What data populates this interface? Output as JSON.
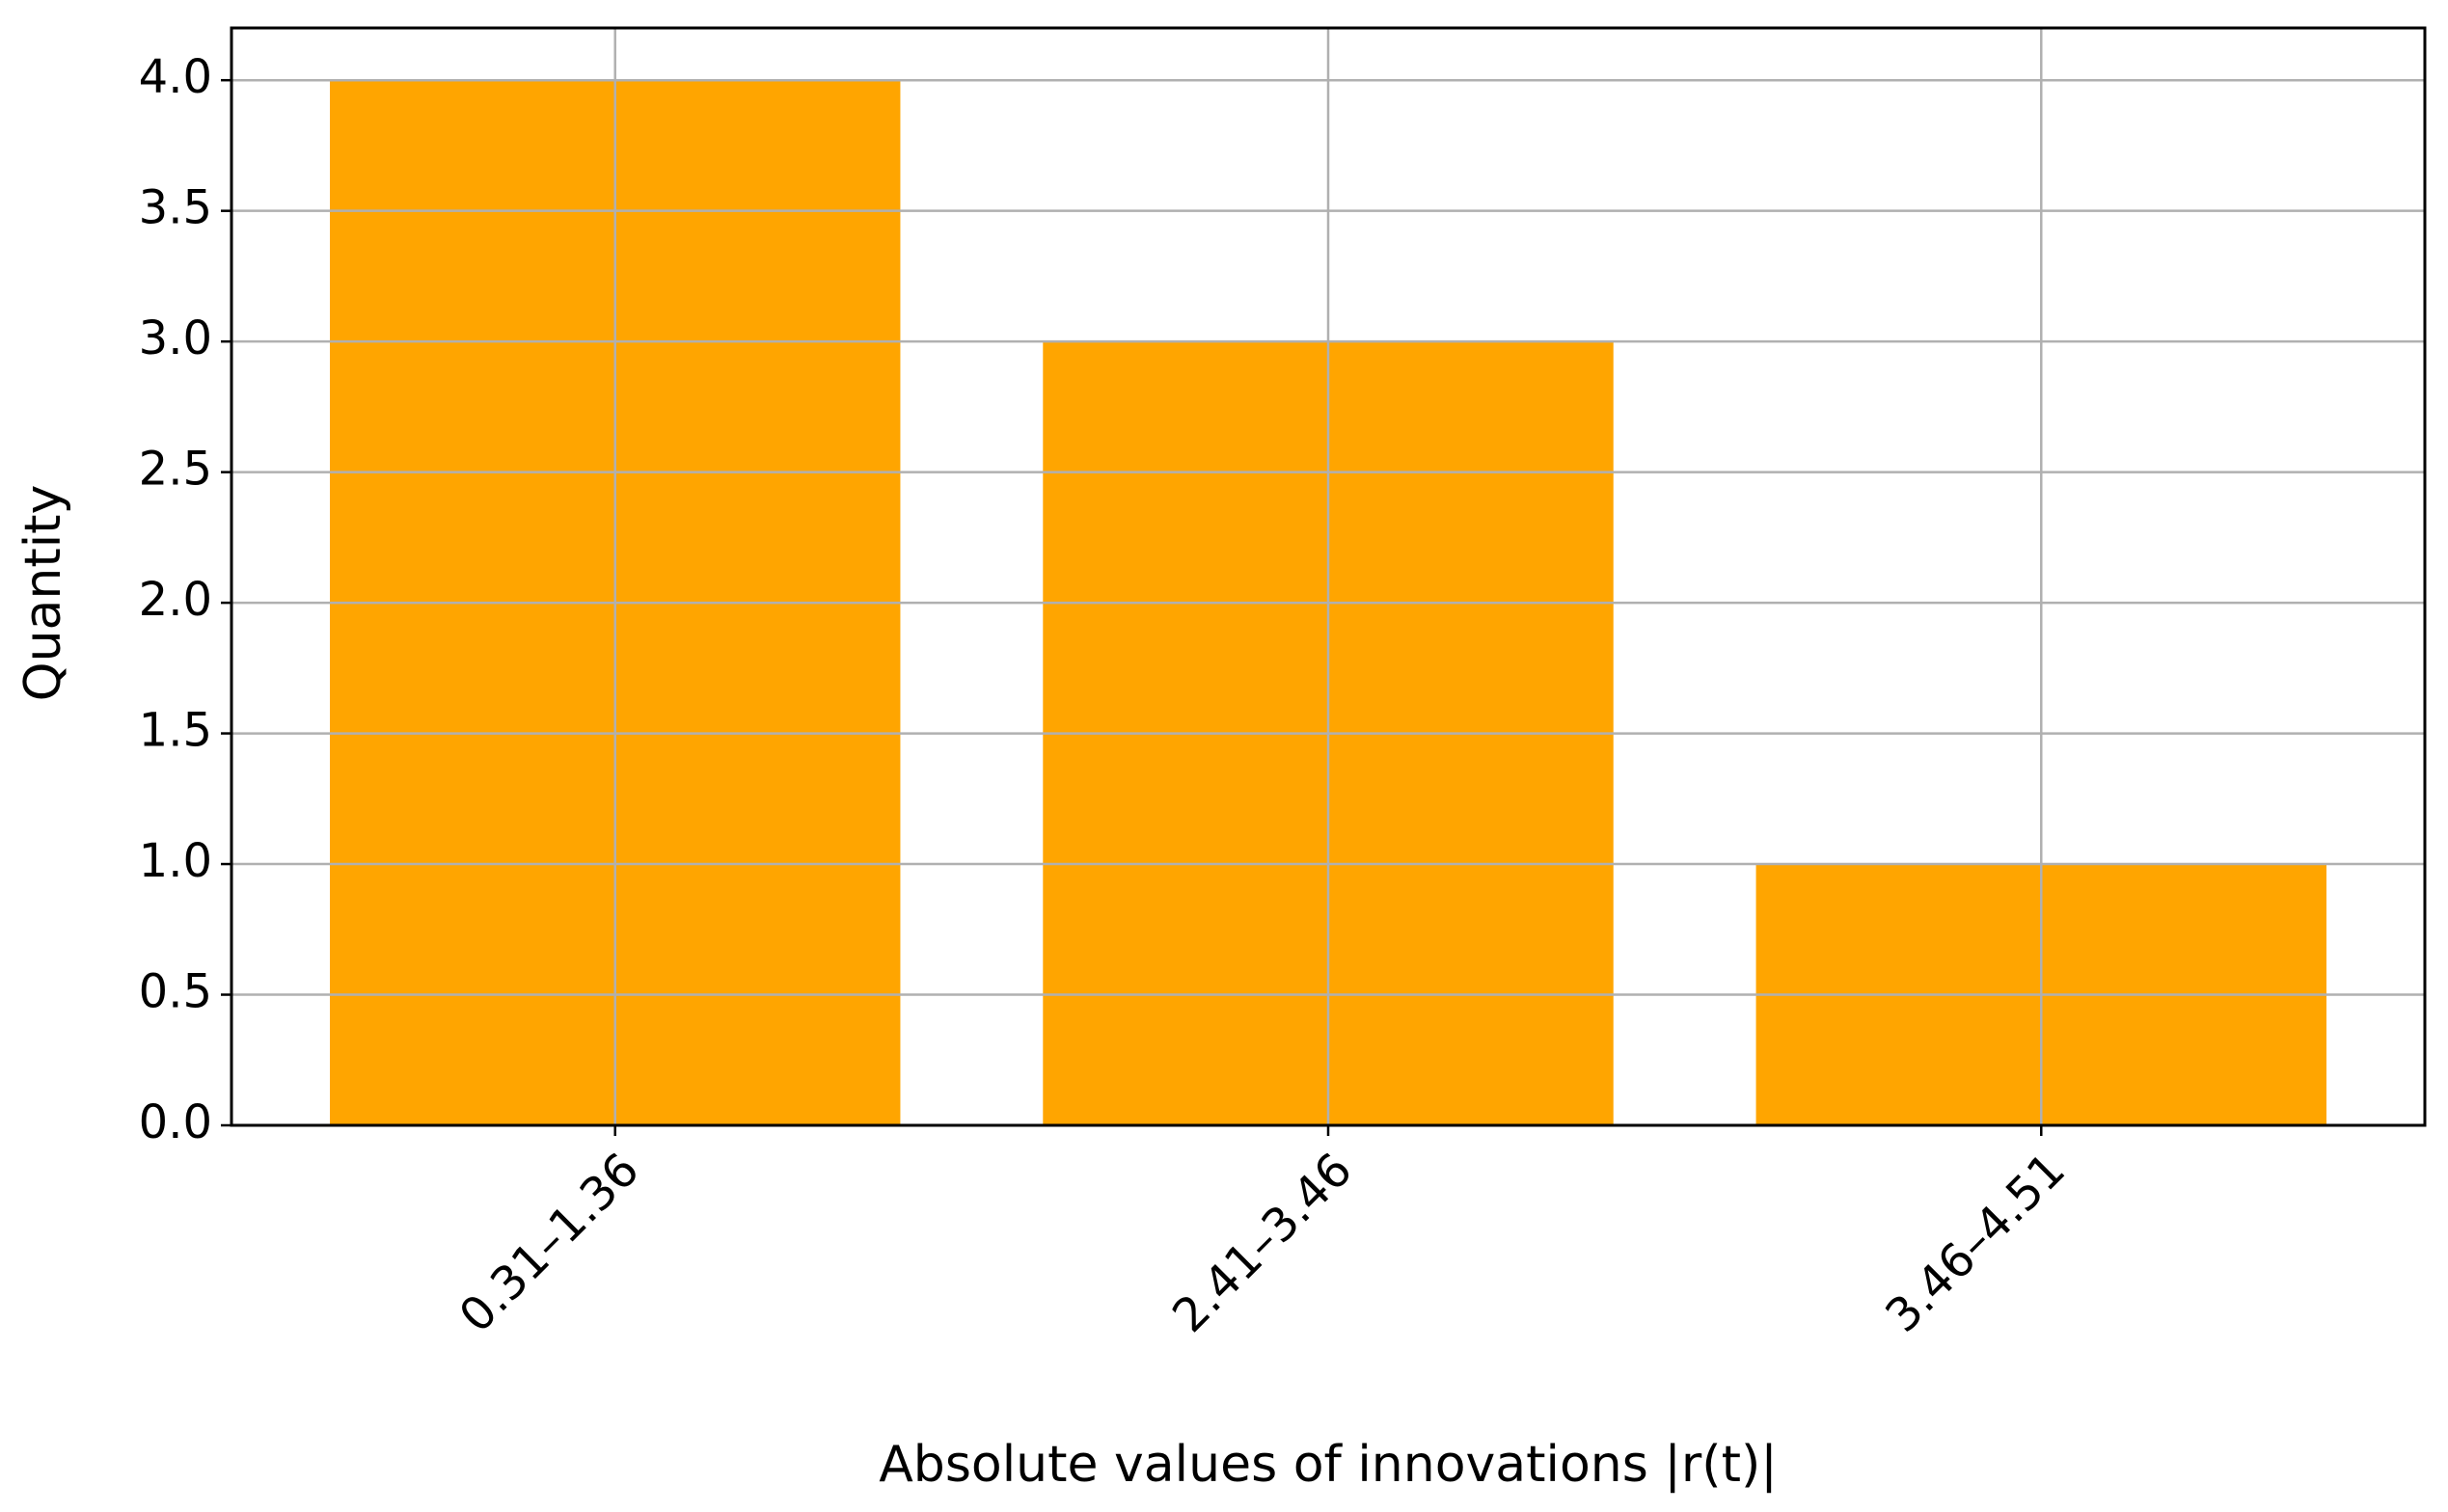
{
  "chart_data": {
    "type": "bar",
    "x_label": "Absolute values of innovations |r(t)|",
    "y_label": "Quantity",
    "categories": [
      "0.31–1.36",
      "2.41–3.46",
      "3.46–4.51"
    ],
    "values": [
      4,
      3,
      1
    ],
    "color": "#ffa500",
    "ylim": [
      0,
      4.2
    ],
    "yticks": [
      {
        "value": 0,
        "label": "0.0"
      },
      {
        "value": 0.5,
        "label": "0.5"
      },
      {
        "value": 1,
        "label": "1.0"
      },
      {
        "value": 1.5,
        "label": "1.5"
      },
      {
        "value": 2,
        "label": "2.0"
      },
      {
        "value": 2.5,
        "label": "2.5"
      },
      {
        "value": 3,
        "label": "3.0"
      },
      {
        "value": 3.5,
        "label": "3.5"
      },
      {
        "value": 4,
        "label": "4.0"
      }
    ],
    "grid": true
  }
}
